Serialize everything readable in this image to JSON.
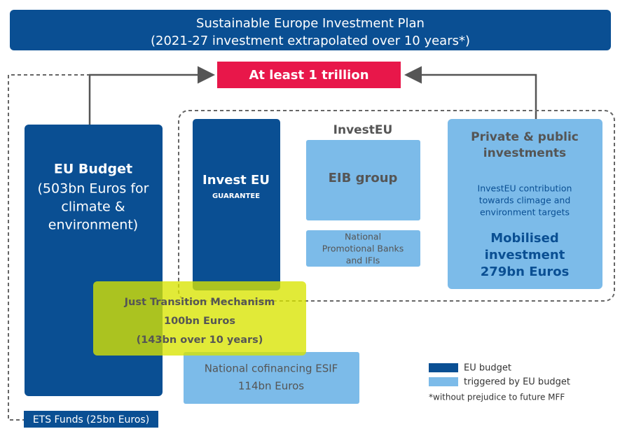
{
  "header": {
    "title": "Sustainable Europe Investment Plan",
    "subtitle": "(2021-27 investment extrapolated over 10 years*)"
  },
  "target": "At least 1 trillion",
  "eu_budget": {
    "title": "EU Budget",
    "lines": [
      "(503bn Euros for",
      "climate &",
      "environment)"
    ]
  },
  "invest_eu": {
    "title": "Invest EU",
    "subtitle": "GUARANTEE"
  },
  "investeu_label": "InvestEU",
  "eib": "EIB group",
  "npb": [
    "National",
    "Promotional Banks",
    "and IFIs"
  ],
  "private": {
    "title": [
      "Private & public",
      "investments"
    ],
    "desc": [
      "InvestEU contribution",
      "towards climage and",
      "environment targets"
    ],
    "mobilised": [
      "Mobilised",
      "investment",
      "279bn Euros"
    ]
  },
  "jtm": [
    "Just Transition Mechanism",
    "100bn Euros",
    "(143bn over 10 years)"
  ],
  "esif": [
    "National cofinancing ESIF",
    "114bn Euros"
  ],
  "legend": [
    {
      "label": "EU budget",
      "color": "#0a4f93"
    },
    {
      "label": "triggered by EU budget",
      "color": "#7cbbe9"
    }
  ],
  "footnote": "*without prejudice to future MFF",
  "ets": "ETS Funds (25bn Euros)"
}
